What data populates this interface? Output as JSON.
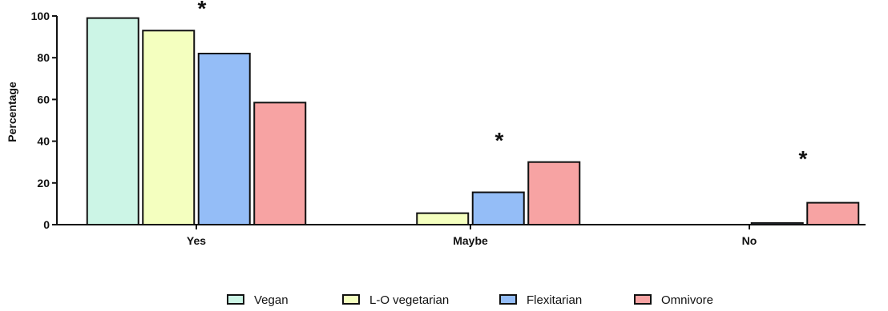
{
  "chart_data": {
    "type": "bar",
    "categories": [
      "Yes",
      "Maybe",
      "No"
    ],
    "series": [
      {
        "name": "Vegan",
        "values": [
          99,
          0,
          0
        ],
        "color": "#ccf5e6"
      },
      {
        "name": "L-O vegetarian",
        "values": [
          93,
          5.5,
          0
        ],
        "color": "#f4ffbf"
      },
      {
        "name": "Flexitarian",
        "values": [
          82,
          15.5,
          0.8
        ],
        "color": "#94bdf7"
      },
      {
        "name": "Omnivore",
        "values": [
          58.5,
          30,
          10.5
        ],
        "color": "#f7a3a3"
      }
    ],
    "title": "",
    "xlabel": "",
    "ylabel": "Percentage",
    "ylim": [
      0,
      100
    ],
    "yticks": [
      "0",
      "20",
      "40",
      "60",
      "80",
      "100"
    ],
    "significance": [
      "*",
      "*",
      "*"
    ],
    "legend_position": "bottom",
    "grid": false
  }
}
